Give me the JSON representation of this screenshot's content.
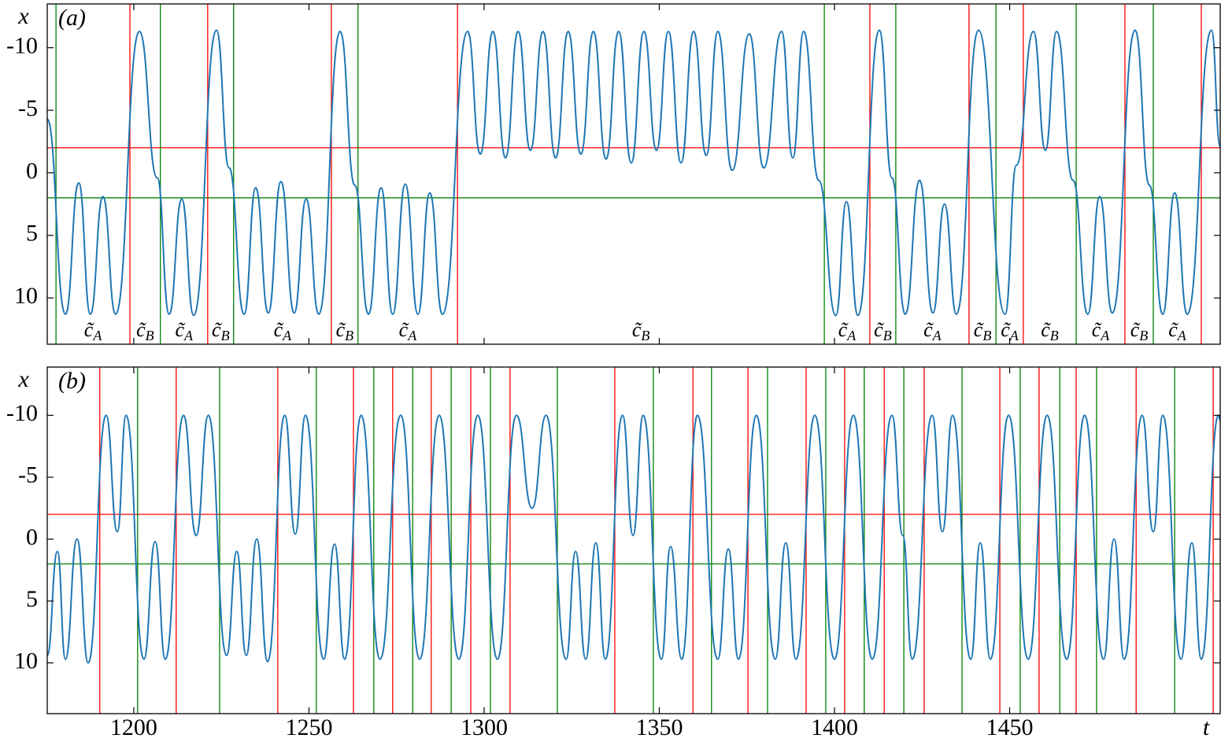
{
  "chart_data": [
    {
      "type": "line",
      "panel_label": "(a)",
      "ylabel": "x",
      "xlim": [
        1175.3,
        1510.1
      ],
      "ylim": [
        13.7,
        -13.5
      ],
      "yticks": [
        -10,
        -5,
        0,
        5,
        10
      ],
      "xticks": [
        1200,
        1250,
        1300,
        1350,
        1400,
        1450
      ],
      "xticklabels": false,
      "color": "#1f77b4",
      "x": [
        1175.3,
        1180.5,
        1184.3,
        1187.6,
        1191.2,
        1194.8,
        1201.6,
        1206.7,
        1210.1,
        1213.7,
        1217.1,
        1223.6,
        1227.2,
        1231.5,
        1234.8,
        1238.4,
        1242.0,
        1245.8,
        1249.2,
        1252.8,
        1258.9,
        1263.1,
        1267.0,
        1270.6,
        1273.9,
        1277.5,
        1281.1,
        1284.5,
        1288.1,
        1295.3,
        1298.9,
        1302.5,
        1306.1,
        1309.7,
        1313.2,
        1316.8,
        1320.4,
        1324.0,
        1327.6,
        1331.2,
        1334.8,
        1338.4,
        1342.0,
        1345.6,
        1349.2,
        1352.6,
        1356.2,
        1359.8,
        1363.4,
        1366.7,
        1370.8,
        1375.7,
        1379.8,
        1384.9,
        1388.1,
        1391.2,
        1395.5,
        1400.4,
        1403.4,
        1406.7,
        1412.8,
        1416.4,
        1420.2,
        1424.3,
        1428.1,
        1431.4,
        1434.8,
        1441.1,
        1448.7,
        1451.9,
        1456.8,
        1460.2,
        1463.4,
        1468.1,
        1472.3,
        1475.7,
        1479.3,
        1485.8,
        1489.9,
        1493.7,
        1497.1,
        1500.7,
        1507.6,
        1510.1
      ],
      "values": [
        -4.3,
        11.3,
        0.8,
        11.3,
        1.9,
        11.3,
        -11.3,
        0.4,
        11.3,
        2.1,
        11.4,
        -11.4,
        -0.4,
        11.3,
        1.2,
        11.2,
        0.7,
        11.2,
        2.1,
        11.3,
        -11.3,
        1.0,
        11.3,
        1.2,
        11.3,
        0.9,
        11.3,
        1.6,
        11.3,
        -11.3,
        -1.5,
        -11.3,
        -1.2,
        -11.3,
        -1.8,
        -11.3,
        -1.2,
        -11.3,
        -1.5,
        -11.3,
        -1.1,
        -11.3,
        -0.8,
        -11.3,
        -1.8,
        -11.3,
        -0.8,
        -11.3,
        -1.4,
        -11.3,
        -0.2,
        -11.1,
        -0.4,
        -11.3,
        -1.2,
        -11.3,
        0.6,
        11.4,
        2.3,
        11.4,
        -11.4,
        0.4,
        11.3,
        0.6,
        11.2,
        2.5,
        11.3,
        -11.4,
        11.3,
        -0.6,
        -11.3,
        -1.8,
        -11.3,
        0.6,
        11.3,
        1.9,
        11.2,
        -11.4,
        1.0,
        11.3,
        1.6,
        11.3,
        -11.4,
        -2.1
      ],
      "hlines": [
        {
          "y": -2,
          "color": "#ff0000"
        },
        {
          "y": 2,
          "color": "#008000"
        }
      ],
      "vlines": [
        {
          "x": 1177.8,
          "color": "#008000"
        },
        {
          "x": 1198.9,
          "color": "#ff0000"
        },
        {
          "x": 1207.6,
          "color": "#008000"
        },
        {
          "x": 1221.1,
          "color": "#ff0000"
        },
        {
          "x": 1228.5,
          "color": "#008000"
        },
        {
          "x": 1256.4,
          "color": "#ff0000"
        },
        {
          "x": 1264.0,
          "color": "#008000"
        },
        {
          "x": 1292.4,
          "color": "#ff0000"
        },
        {
          "x": 1397.1,
          "color": "#008000"
        },
        {
          "x": 1410.1,
          "color": "#ff0000"
        },
        {
          "x": 1417.5,
          "color": "#008000"
        },
        {
          "x": 1438.4,
          "color": "#ff0000"
        },
        {
          "x": 1446.1,
          "color": "#008000"
        },
        {
          "x": 1453.9,
          "color": "#ff0000"
        },
        {
          "x": 1469.0,
          "color": "#008000"
        },
        {
          "x": 1482.9,
          "color": "#ff0000"
        },
        {
          "x": 1491.0,
          "color": "#008000"
        },
        {
          "x": 1504.7,
          "color": "#ff0000"
        }
      ],
      "region_labels": [
        {
          "symbol": "c̃",
          "sub": "A"
        },
        {
          "symbol": "c̃",
          "sub": "B"
        },
        {
          "symbol": "c̃",
          "sub": "A"
        },
        {
          "symbol": "c̃",
          "sub": "B"
        },
        {
          "symbol": "c̃",
          "sub": "A"
        },
        {
          "symbol": "c̃",
          "sub": "B"
        },
        {
          "symbol": "c̃",
          "sub": "A"
        },
        {
          "symbol": "c̃",
          "sub": "B"
        },
        {
          "symbol": "c̃",
          "sub": "A"
        },
        {
          "symbol": "c̃",
          "sub": "B"
        },
        {
          "symbol": "c̃",
          "sub": "A"
        },
        {
          "symbol": "c̃",
          "sub": "B"
        },
        {
          "symbol": "c̃",
          "sub": "A"
        },
        {
          "symbol": "c̃",
          "sub": "B"
        },
        {
          "symbol": "c̃",
          "sub": "A"
        },
        {
          "symbol": "c̃",
          "sub": "B"
        },
        {
          "symbol": "c̃",
          "sub": "A"
        }
      ]
    },
    {
      "type": "line",
      "panel_label": "(b)",
      "ylabel": "x",
      "xlabel": "t",
      "xlim": [
        1175.3,
        1510.1
      ],
      "ylim": [
        14.1,
        -13.9
      ],
      "yticks": [
        -10,
        -5,
        0,
        5,
        10
      ],
      "xticks": [
        1200,
        1250,
        1300,
        1350,
        1400,
        1450
      ],
      "xticklabels": true,
      "color": "#1f77b4",
      "x": [
        1175.3,
        1178.2,
        1180.5,
        1183.8,
        1187.0,
        1192.1,
        1195.3,
        1197.8,
        1202.9,
        1206.1,
        1209.0,
        1214.2,
        1217.8,
        1221.3,
        1226.5,
        1229.4,
        1232.1,
        1235.1,
        1238.2,
        1243.1,
        1246.1,
        1249.0,
        1254.2,
        1257.3,
        1260.2,
        1264.9,
        1270.3,
        1276.2,
        1281.6,
        1287.2,
        1292.8,
        1298.2,
        1303.8,
        1309.2,
        1313.7,
        1317.7,
        1323.4,
        1326.1,
        1329.0,
        1331.9,
        1334.6,
        1339.5,
        1342.5,
        1345.4,
        1350.6,
        1353.2,
        1356.4,
        1360.9,
        1366.7,
        1369.7,
        1372.6,
        1377.7,
        1383.1,
        1386.1,
        1389.0,
        1394.4,
        1400.0,
        1405.4,
        1410.8,
        1416.4,
        1419.5,
        1422.2,
        1427.9,
        1430.8,
        1433.7,
        1438.9,
        1441.6,
        1444.5,
        1449.7,
        1455.3,
        1460.7,
        1466.3,
        1471.4,
        1476.8,
        1479.8,
        1482.7,
        1487.8,
        1491.0,
        1493.7,
        1498.9,
        1502.0,
        1504.7,
        1509.6,
        1510.1
      ],
      "values": [
        9.4,
        1.0,
        9.7,
        0.0,
        10.0,
        -10.0,
        -0.6,
        -10.0,
        9.7,
        0.2,
        9.7,
        -10.0,
        -0.3,
        -10.0,
        9.4,
        1.0,
        9.4,
        0.0,
        9.9,
        -10.0,
        -0.4,
        -10.0,
        9.7,
        0.4,
        9.7,
        -10.0,
        9.7,
        -10.0,
        9.7,
        -10.0,
        9.7,
        -10.0,
        9.7,
        -10.0,
        -2.5,
        -10.0,
        9.7,
        1.0,
        9.7,
        0.3,
        9.7,
        -10.0,
        -0.3,
        -10.0,
        9.7,
        0.6,
        9.7,
        -10.0,
        9.7,
        0.8,
        9.7,
        -10.0,
        9.7,
        0.3,
        9.7,
        -10.0,
        9.7,
        -10.0,
        9.7,
        -10.0,
        -0.3,
        9.7,
        -10.0,
        -0.6,
        -10.0,
        9.7,
        0.3,
        9.7,
        -10.0,
        9.7,
        -10.0,
        9.7,
        -10.0,
        9.7,
        0.0,
        9.7,
        -10.0,
        -0.6,
        -10.0,
        9.7,
        0.3,
        9.7,
        -10.0,
        -9.6
      ],
      "hlines": [
        {
          "y": -2,
          "color": "#ff0000"
        },
        {
          "y": 2,
          "color": "#008000"
        }
      ],
      "vlines": [
        {
          "x": 1190.3,
          "color": "#ff0000"
        },
        {
          "x": 1201.1,
          "color": "#008000"
        },
        {
          "x": 1212.1,
          "color": "#ff0000"
        },
        {
          "x": 1224.5,
          "color": "#008000"
        },
        {
          "x": 1241.1,
          "color": "#ff0000"
        },
        {
          "x": 1252.1,
          "color": "#008000"
        },
        {
          "x": 1262.7,
          "color": "#ff0000"
        },
        {
          "x": 1268.5,
          "color": "#008000"
        },
        {
          "x": 1273.9,
          "color": "#ff0000"
        },
        {
          "x": 1279.6,
          "color": "#008000"
        },
        {
          "x": 1284.9,
          "color": "#ff0000"
        },
        {
          "x": 1290.6,
          "color": "#008000"
        },
        {
          "x": 1296.2,
          "color": "#ff0000"
        },
        {
          "x": 1301.8,
          "color": "#008000"
        },
        {
          "x": 1307.4,
          "color": "#ff0000"
        },
        {
          "x": 1320.9,
          "color": "#008000"
        },
        {
          "x": 1337.3,
          "color": "#ff0000"
        },
        {
          "x": 1348.3,
          "color": "#008000"
        },
        {
          "x": 1359.6,
          "color": "#ff0000"
        },
        {
          "x": 1364.9,
          "color": "#008000"
        },
        {
          "x": 1375.3,
          "color": "#ff0000"
        },
        {
          "x": 1380.9,
          "color": "#008000"
        },
        {
          "x": 1391.9,
          "color": "#ff0000"
        },
        {
          "x": 1397.5,
          "color": "#008000"
        },
        {
          "x": 1402.9,
          "color": "#ff0000"
        },
        {
          "x": 1408.5,
          "color": "#008000"
        },
        {
          "x": 1414.2,
          "color": "#ff0000"
        },
        {
          "x": 1419.8,
          "color": "#008000"
        },
        {
          "x": 1425.6,
          "color": "#ff0000"
        },
        {
          "x": 1436.4,
          "color": "#008000"
        },
        {
          "x": 1447.2,
          "color": "#ff0000"
        },
        {
          "x": 1453.0,
          "color": "#008000"
        },
        {
          "x": 1458.4,
          "color": "#ff0000"
        },
        {
          "x": 1464.3,
          "color": "#008000"
        },
        {
          "x": 1469.0,
          "color": "#ff0000"
        },
        {
          "x": 1474.8,
          "color": "#008000"
        },
        {
          "x": 1486.1,
          "color": "#ff0000"
        },
        {
          "x": 1497.1,
          "color": "#008000"
        },
        {
          "x": 1508.1,
          "color": "#ff0000"
        }
      ]
    }
  ]
}
